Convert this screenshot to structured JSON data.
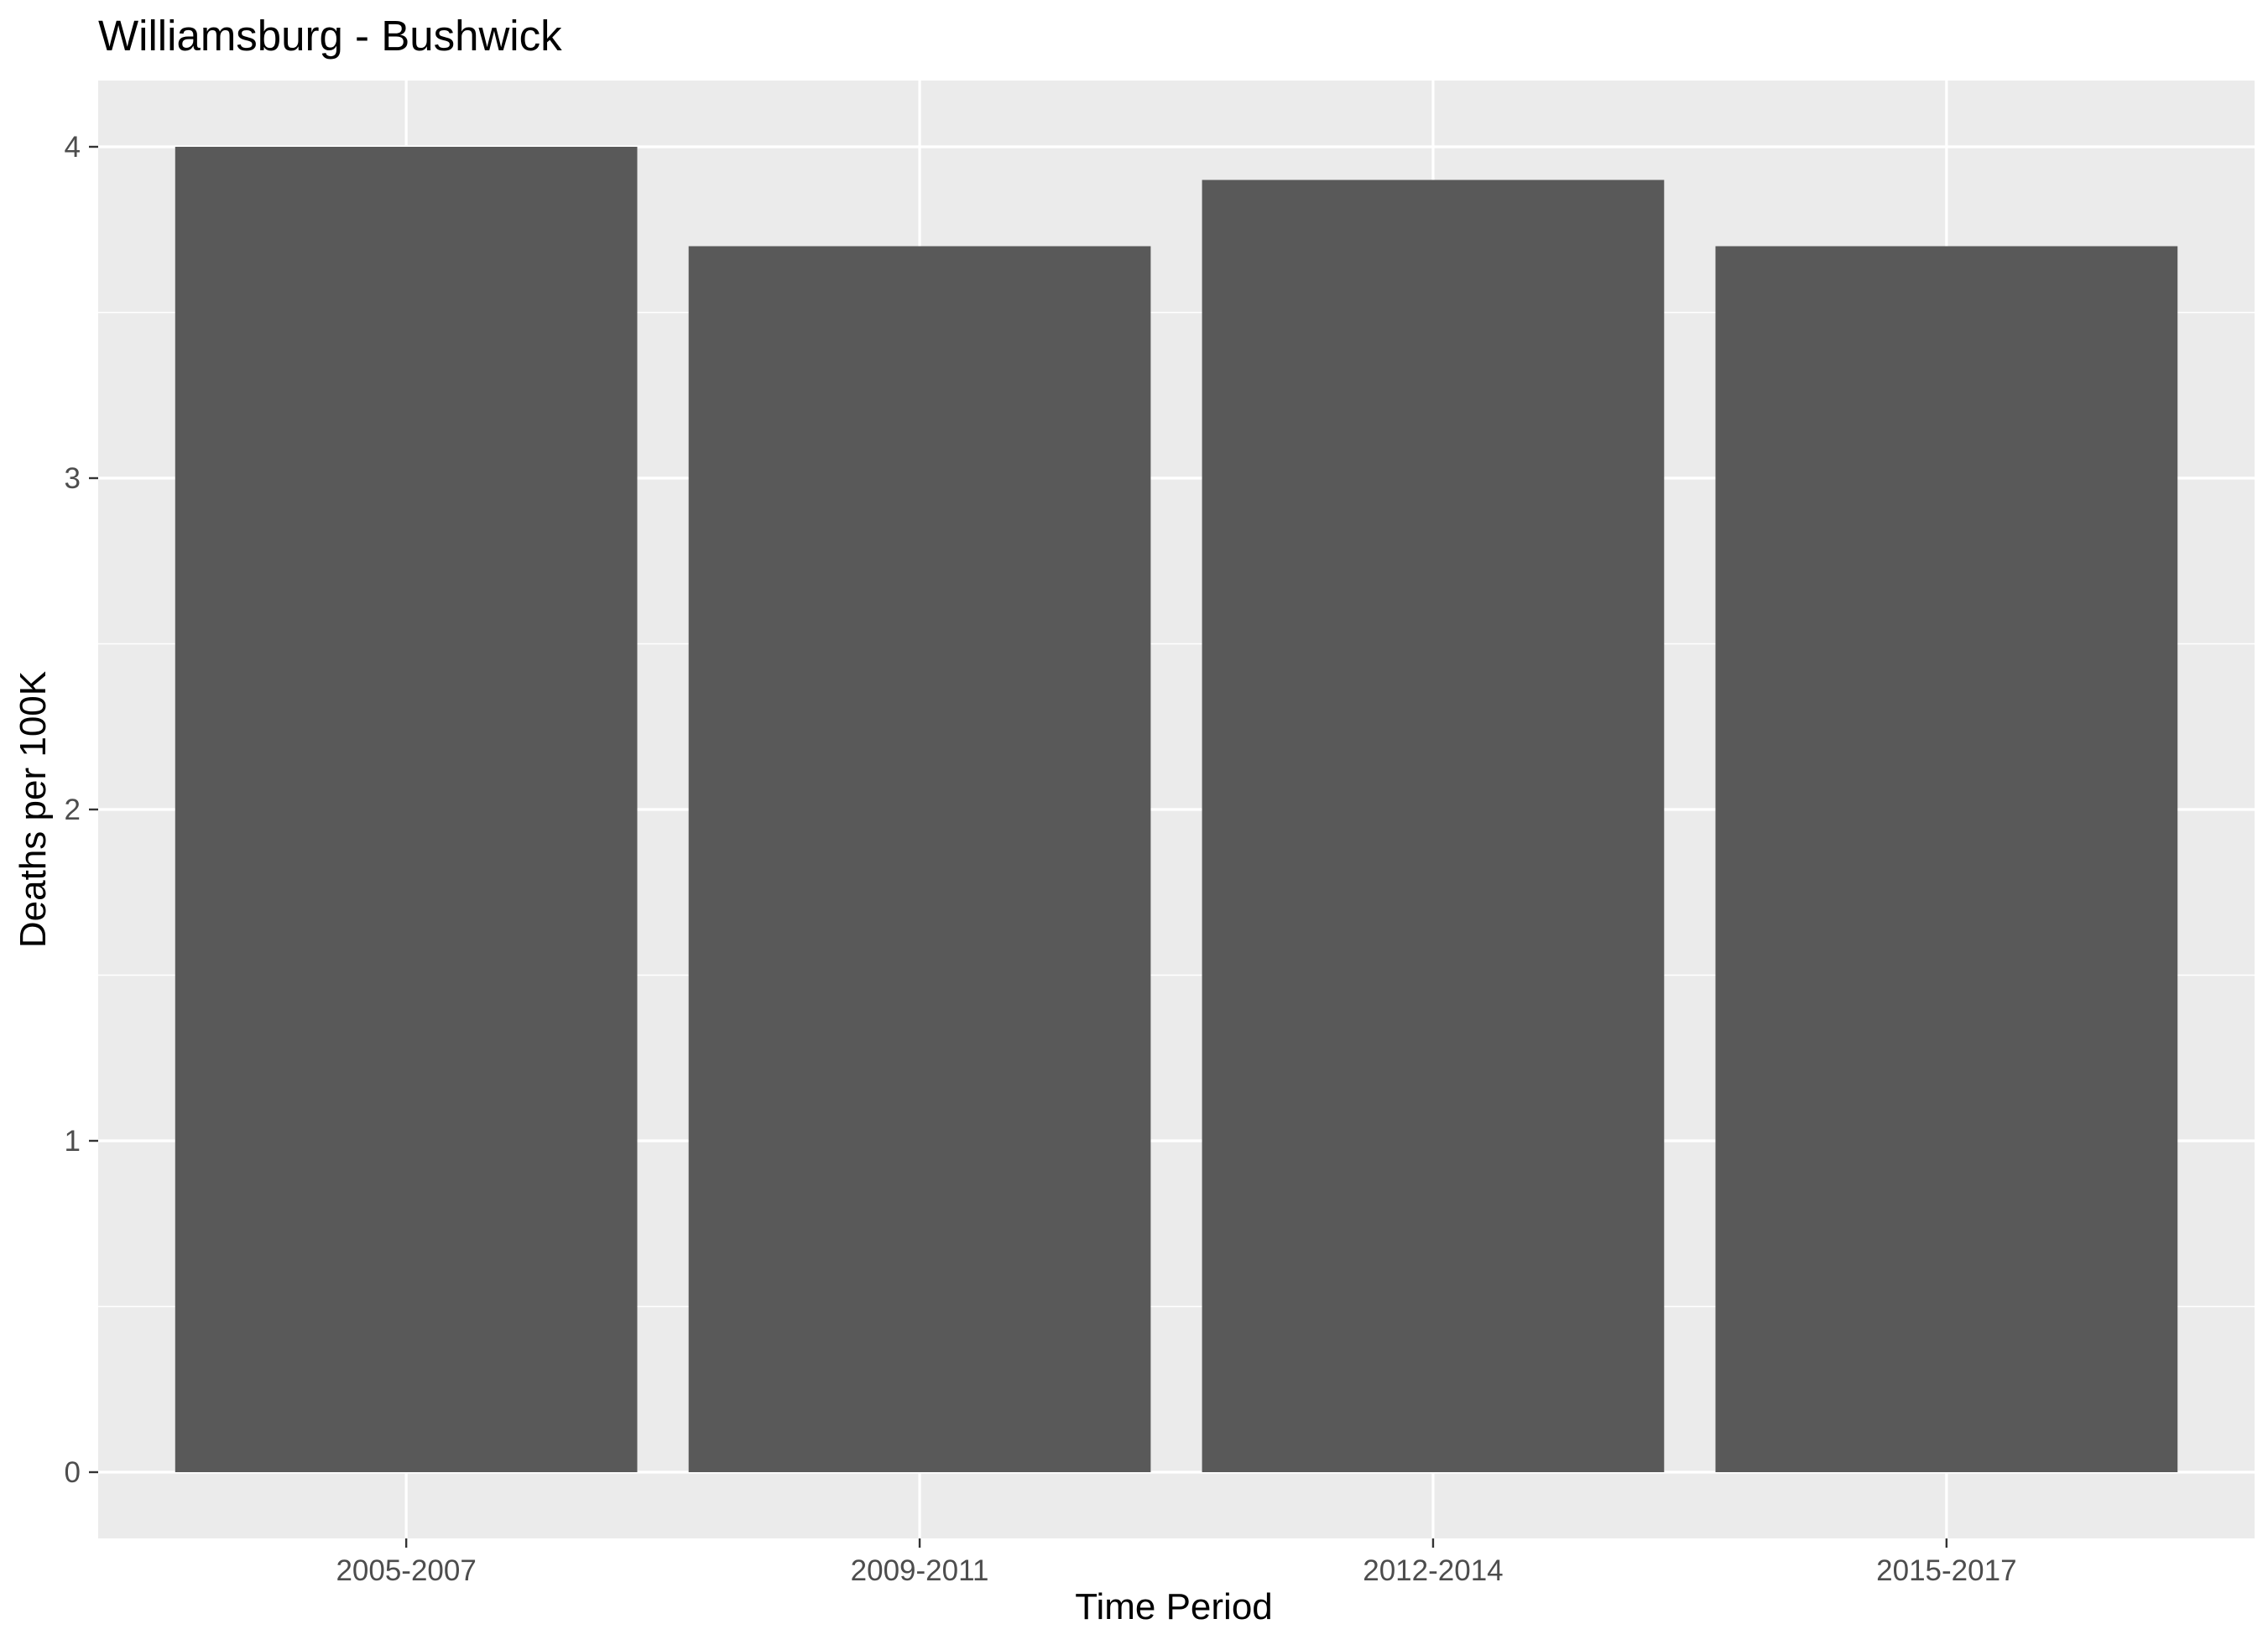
{
  "chart_data": {
    "type": "bar",
    "title": "Williamsburg - Bushwick",
    "xlabel": "Time Period",
    "ylabel": "Deaths per 100K",
    "categories": [
      "2005-2007",
      "2009-2011",
      "2012-2014",
      "2015-2017"
    ],
    "values": [
      4.0,
      3.7,
      3.9,
      3.7
    ],
    "ylim": [
      -0.2,
      4.2
    ],
    "yticks": [
      "0",
      "1",
      "2",
      "3",
      "4"
    ],
    "grid": true,
    "legend": "none",
    "colors": {
      "bar": "#595959",
      "panel": "#ebebeb",
      "grid": "#ffffff",
      "tick_text": "#4d4d4d",
      "tick_mark": "#333333"
    }
  }
}
